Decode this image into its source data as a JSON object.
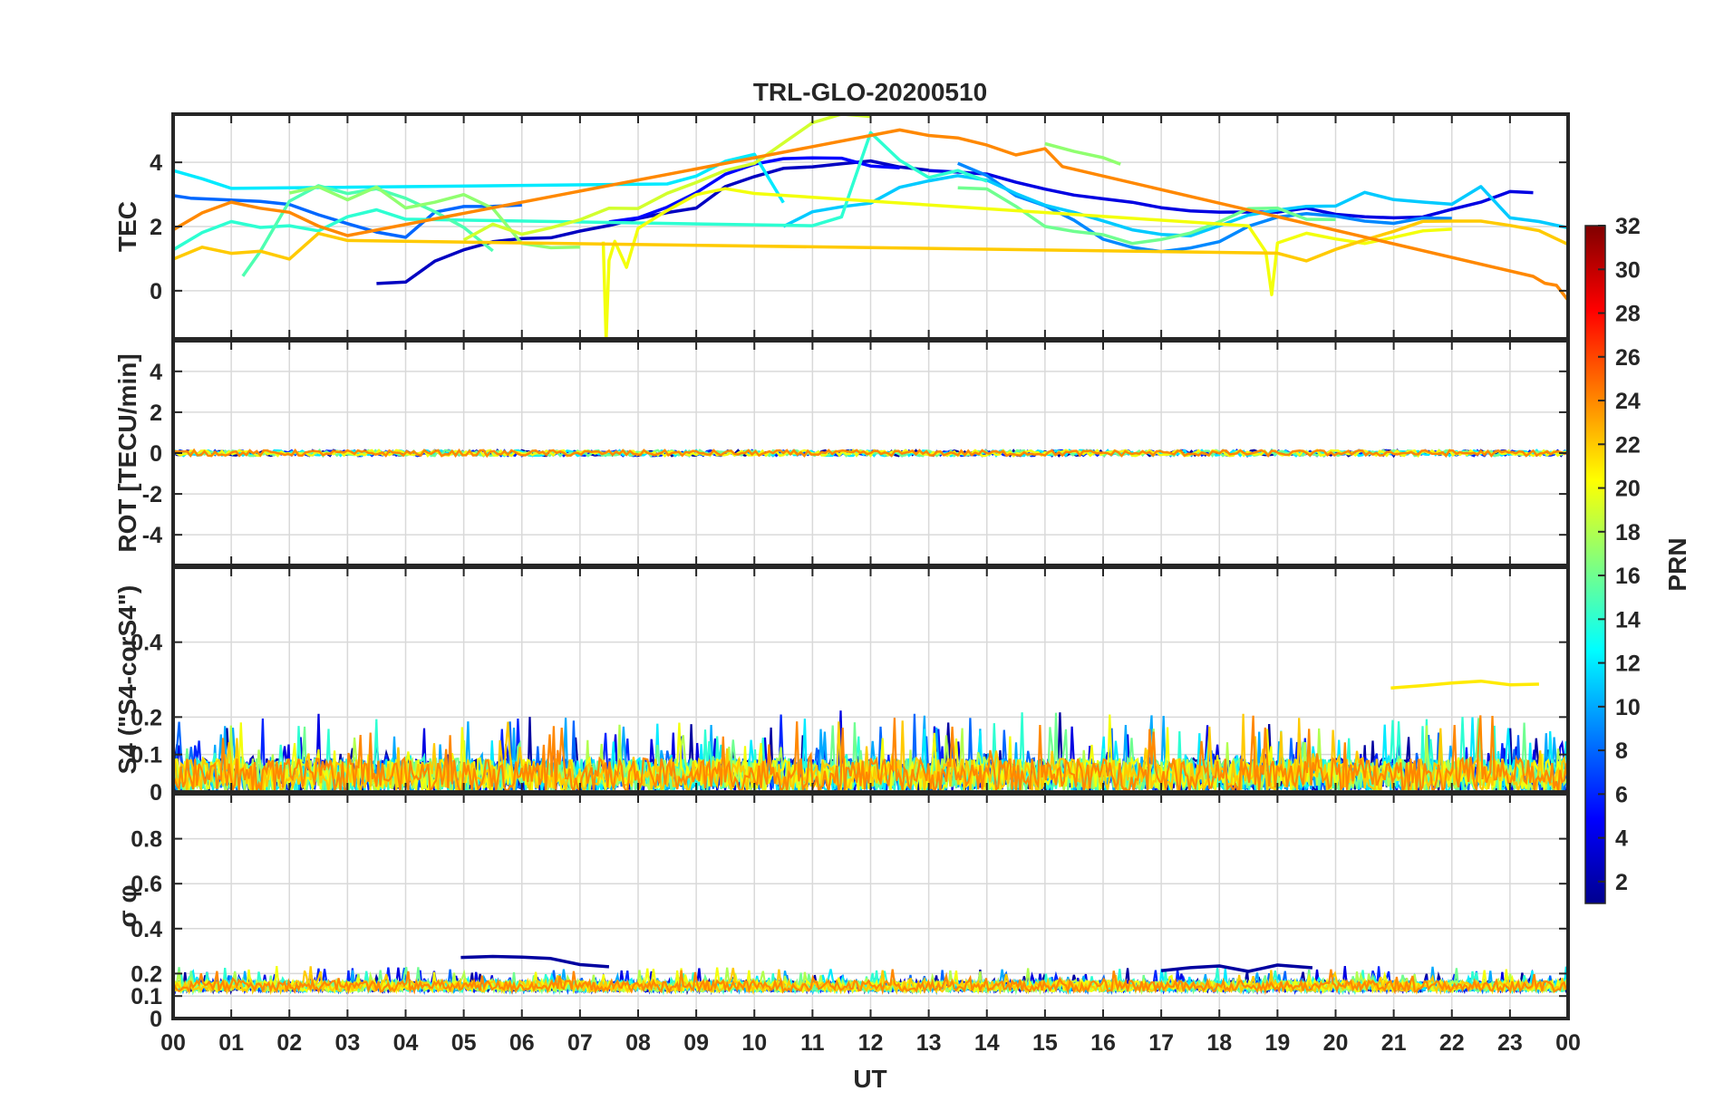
{
  "chart_data": {
    "type": "line",
    "title": "TRL-GLO-20200510",
    "xlabel": "UT",
    "x_tick_labels": [
      "00",
      "01",
      "02",
      "03",
      "04",
      "05",
      "06",
      "07",
      "08",
      "09",
      "10",
      "11",
      "12",
      "13",
      "14",
      "15",
      "16",
      "17",
      "18",
      "19",
      "20",
      "21",
      "22",
      "23",
      "00"
    ],
    "xlim": [
      0,
      24
    ],
    "colorbar": {
      "label": "PRN",
      "range": [
        1,
        32
      ],
      "ticks": [
        2,
        4,
        6,
        8,
        10,
        12,
        14,
        16,
        18,
        20,
        22,
        24,
        26,
        28,
        30,
        32
      ],
      "colormap": "jet"
    },
    "panels": [
      {
        "id": "tec",
        "ylabel": "TEC",
        "ylim": [
          -1.5,
          5.5
        ],
        "yticks": [
          0,
          2,
          4
        ],
        "series": [
          {
            "prn": 3,
            "x": [
              3.5,
              4.0,
              4.5,
              5.0,
              5.5,
              6.0,
              6.5,
              7.0,
              7.5,
              8.0,
              8.5,
              9.0,
              9.5,
              10.0,
              10.5,
              11.0,
              11.5,
              12.0,
              12.5,
              13.0
            ],
            "y": [
              0.2,
              0.3,
              0.9,
              1.2,
              1.5,
              1.6,
              1.7,
              1.8,
              2.0,
              2.2,
              2.4,
              2.6,
              3.2,
              3.6,
              3.8,
              3.9,
              4.0,
              4.0,
              3.8,
              3.7
            ]
          },
          {
            "prn": 4,
            "x": [
              13.0,
              13.5,
              14.0,
              14.5,
              15.0,
              15.5,
              16.0,
              16.5,
              17.0,
              17.5,
              18.0,
              18.5,
              19.0,
              19.5,
              20.0,
              20.5,
              21.0,
              21.5,
              22.0,
              22.5,
              23.0,
              23.4
            ],
            "y": [
              3.8,
              3.7,
              3.6,
              3.4,
              3.2,
              3.0,
              2.8,
              2.7,
              2.6,
              2.5,
              2.4,
              2.5,
              2.5,
              2.6,
              2.4,
              2.3,
              2.2,
              2.3,
              2.5,
              2.8,
              3.1,
              3.0
            ]
          },
          {
            "prn": 5,
            "x": [
              7.5,
              8.0,
              8.5,
              9.0,
              9.5,
              10.0,
              10.5,
              11.0,
              11.5,
              12.0,
              12.5
            ],
            "y": [
              2.1,
              2.3,
              2.6,
              3.0,
              3.6,
              4.0,
              4.1,
              4.2,
              4.1,
              3.9,
              3.8
            ]
          },
          {
            "prn": 8,
            "x": [
              0.0,
              0.3,
              1.5,
              2.0,
              2.5,
              3.0,
              3.5,
              4.0,
              4.5,
              5.0,
              5.5,
              6.0
            ],
            "y": [
              3.0,
              2.9,
              2.8,
              2.7,
              2.3,
              2.1,
              1.9,
              1.7,
              2.5,
              2.6,
              2.7,
              2.7
            ]
          },
          {
            "prn": 9,
            "x": [
              13.5,
              14.0,
              14.5,
              15.0,
              15.5,
              16.0,
              16.5,
              17.0,
              17.5,
              18.0,
              18.5,
              19.0,
              19.5,
              20.0,
              20.5,
              21.0,
              21.5,
              22.0
            ],
            "y": [
              4.0,
              3.6,
              3.0,
              2.6,
              2.2,
              1.6,
              1.3,
              1.2,
              1.3,
              1.6,
              2.0,
              2.3,
              2.4,
              2.3,
              2.2,
              2.1,
              2.2,
              2.3
            ]
          },
          {
            "prn": 11,
            "x": [
              10.5,
              11.0,
              11.5,
              12.0,
              12.5,
              13.0,
              13.5,
              14.0,
              14.5,
              15.0,
              15.5,
              16.0,
              16.5,
              17.0,
              17.5,
              18.0,
              18.5,
              19.0,
              19.5,
              20.0,
              20.5,
              21.0,
              21.5,
              22.0,
              22.5,
              23.0,
              23.5,
              24.0
            ],
            "y": [
              2.0,
              2.4,
              2.6,
              2.8,
              3.2,
              3.4,
              3.6,
              3.4,
              3.0,
              2.7,
              2.4,
              2.1,
              1.9,
              1.8,
              1.7,
              2.0,
              2.3,
              2.5,
              2.6,
              2.7,
              3.0,
              2.9,
              2.8,
              2.7,
              3.2,
              2.3,
              2.1,
              2.0
            ]
          },
          {
            "prn": 12,
            "x": [
              0.0,
              0.5,
              1.0,
              8.5,
              9.0,
              9.5,
              10.0,
              10.5
            ],
            "y": [
              3.7,
              3.5,
              3.2,
              3.4,
              3.6,
              4.0,
              4.2,
              2.7
            ]
          },
          {
            "prn": 14,
            "x": [
              0.0,
              0.5,
              1.0,
              1.5,
              2.0,
              2.5,
              3.0,
              3.5,
              4.0,
              11.0,
              11.5,
              12.0,
              12.5,
              13.0,
              13.5,
              14.0
            ],
            "y": [
              1.2,
              1.8,
              2.1,
              2.0,
              2.1,
              1.9,
              2.3,
              2.5,
              2.2,
              2.0,
              2.3,
              4.9,
              4.0,
              3.5,
              3.8,
              3.4
            ]
          },
          {
            "prn": 15,
            "x": [
              1.2,
              1.5,
              2.0,
              2.5,
              3.0,
              3.5,
              4.0,
              4.5,
              5.0,
              5.5
            ],
            "y": [
              0.5,
              1.2,
              2.8,
              3.3,
              3.0,
              3.2,
              2.9,
              2.5,
              2.0,
              1.3
            ]
          },
          {
            "prn": 16,
            "x": [
              13.5,
              14.0,
              14.5,
              15.0,
              15.5,
              16.0,
              16.5,
              17.0,
              17.5,
              18.0,
              18.5,
              19.0,
              19.5,
              20.0
            ],
            "y": [
              3.2,
              3.1,
              2.6,
              2.0,
              1.8,
              1.7,
              1.5,
              1.6,
              1.8,
              2.2,
              2.5,
              2.6,
              2.3,
              2.2
            ]
          },
          {
            "prn": 17,
            "x": [
              15.0,
              15.5,
              16.0,
              16.3,
              2.0,
              2.5,
              3.0,
              3.5,
              4.0,
              4.5,
              5.0,
              5.5,
              6.0,
              6.5,
              7.0
            ],
            "y": [
              4.6,
              4.4,
              4.2,
              4.0,
              3.1,
              3.2,
              2.8,
              3.2,
              2.6,
              2.8,
              3.0,
              2.5,
              1.5,
              1.4,
              1.3
            ]
          },
          {
            "prn": 19,
            "x": [
              5.0,
              5.5,
              6.0,
              6.5,
              7.0,
              7.5,
              8.0,
              8.5,
              9.0,
              9.5,
              10.0,
              10.5,
              11.0,
              11.5,
              12.0
            ],
            "y": [
              1.6,
              2.0,
              1.8,
              2.0,
              2.2,
              2.5,
              2.6,
              3.0,
              3.4,
              3.7,
              4.0,
              4.6,
              5.2,
              5.5,
              5.4
            ]
          },
          {
            "prn": 20,
            "x": [
              7.4,
              7.45,
              7.5,
              7.6,
              7.8,
              8.0,
              8.5,
              9.0,
              9.5,
              10.0,
              18.5,
              18.8,
              18.9,
              19.0,
              19.5,
              20.0,
              20.5,
              21.0,
              21.5,
              22.0
            ],
            "y": [
              1.5,
              -1.5,
              1.0,
              1.5,
              0.8,
              2.0,
              2.5,
              3.0,
              3.2,
              3.0,
              2.0,
              1.2,
              -0.1,
              1.5,
              1.8,
              1.6,
              1.5,
              1.6,
              1.8,
              1.9
            ]
          },
          {
            "prn": 22,
            "x": [
              0.0,
              0.5,
              1.0,
              1.5,
              2.0,
              2.5,
              3.0,
              19.0,
              19.5,
              20.0,
              20.5,
              21.0,
              21.5,
              22.0,
              22.5,
              23.0,
              23.5,
              24.0
            ],
            "y": [
              1.0,
              1.3,
              1.2,
              1.3,
              1.0,
              1.8,
              1.5,
              1.1,
              1.0,
              1.3,
              1.6,
              1.9,
              2.1,
              2.2,
              2.1,
              2.0,
              1.8,
              1.4
            ]
          },
          {
            "prn": 24,
            "x": [
              0.0,
              0.5,
              1.0,
              1.5,
              2.0,
              2.5,
              3.0,
              12.5,
              13.0,
              13.5,
              14.0,
              14.5,
              15.0,
              15.3,
              23.4,
              23.6,
              23.8,
              24.0
            ],
            "y": [
              1.9,
              2.4,
              2.7,
              2.6,
              2.4,
              2.0,
              1.7,
              5.0,
              4.9,
              4.7,
              4.5,
              4.3,
              4.4,
              3.9,
              0.4,
              0.2,
              0.1,
              -0.3
            ]
          }
        ]
      },
      {
        "id": "rot",
        "ylabel": "ROT [TECU/min]",
        "ylim": [
          -5.5,
          5.5
        ],
        "yticks": [
          -4,
          -2,
          0,
          2,
          4
        ],
        "series_note": "All PRN ROT values scatter within about ±0.15 TECU/min around 0 throughout the day"
      },
      {
        "id": "s4",
        "ylabel": "S4 (\"S4-corS4\")",
        "ylim": [
          0,
          0.6
        ],
        "yticks": [
          0,
          0.1,
          0.2,
          0.4
        ],
        "ytick_labels": [
          "0",
          "0.1",
          "0.2",
          "0.4"
        ],
        "background_range": [
          0.0,
          0.15
        ],
        "series": [
          {
            "prn": 21,
            "x": [
              20.95,
              21.5,
              22.0,
              22.5,
              23.0,
              23.5
            ],
            "y": [
              0.27,
              0.28,
              0.29,
              0.29,
              0.29,
              0.3
            ]
          }
        ]
      },
      {
        "id": "sigphi",
        "ylabel": "σ φ",
        "ylim": [
          0,
          1.0
        ],
        "yticks": [
          0,
          0.1,
          0.2,
          0.4,
          0.6,
          0.8
        ],
        "ytick_labels": [
          "0",
          "0.1",
          "0.2",
          "0.4",
          "0.6",
          "0.8"
        ],
        "background_range": [
          0.12,
          0.2
        ],
        "series": [
          {
            "prn": 2,
            "x": [
              4.95,
              5.5,
              6.0,
              6.5,
              7.0,
              7.5
            ],
            "y": [
              0.28,
              0.27,
              0.26,
              0.28,
              0.24,
              0.22
            ]
          },
          {
            "prn": 2,
            "x": [
              17.0,
              17.5,
              18.0,
              18.5,
              19.0,
              19.6
            ],
            "y": [
              0.22,
              0.24,
              0.24,
              0.22,
              0.24,
              0.22
            ]
          }
        ]
      }
    ]
  }
}
